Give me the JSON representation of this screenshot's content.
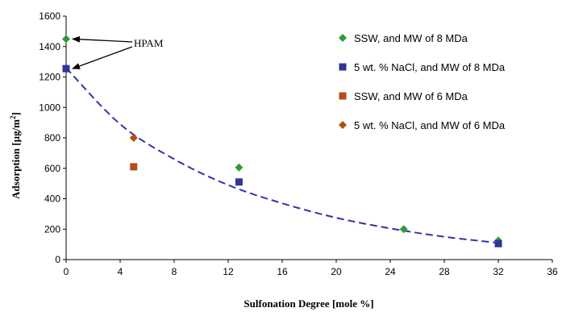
{
  "chart_data": {
    "type": "scatter",
    "xlabel": "Sulfonation Degree [mole %]",
    "ylabel_main": "Adsorption [µg/m",
    "ylabel_sup": "2",
    "ylabel_tail": "]",
    "xlim": [
      0,
      36
    ],
    "ylim": [
      0,
      1600
    ],
    "xticks": [
      0,
      4,
      8,
      12,
      16,
      20,
      24,
      28,
      32,
      36
    ],
    "yticks": [
      0,
      200,
      400,
      600,
      800,
      1000,
      1200,
      1400,
      1600
    ],
    "grid": false,
    "legend_position": "top-right",
    "series": [
      {
        "name": "SSW, and MW of 8 MDa",
        "marker": "diamond",
        "color": "#339933",
        "points": [
          [
            0,
            1450
          ],
          [
            12.8,
            605
          ],
          [
            25,
            200
          ],
          [
            32,
            125
          ]
        ]
      },
      {
        "name": "5 wt. % NaCl, and MW of 8 MDa",
        "marker": "square",
        "color": "#333399",
        "points": [
          [
            0,
            1255
          ],
          [
            12.8,
            510
          ],
          [
            32,
            105
          ]
        ]
      },
      {
        "name": "SSW, and MW of 6 MDa",
        "marker": "square",
        "color": "#b34d1a",
        "points": [
          [
            5,
            610
          ]
        ]
      },
      {
        "name": "5 wt. % NaCl, and MW of 6 MDa",
        "marker": "diamond",
        "color": "#b34d1a",
        "points": [
          [
            5,
            800
          ]
        ]
      }
    ],
    "trendline": {
      "style": "dashed",
      "color": "#3333aa",
      "points": [
        [
          0,
          1260
        ],
        [
          4,
          890
        ],
        [
          8,
          660
        ],
        [
          12,
          490
        ],
        [
          16,
          370
        ],
        [
          20,
          275
        ],
        [
          24,
          205
        ],
        [
          28,
          150
        ],
        [
          32,
          110
        ]
      ]
    },
    "annotations": [
      {
        "text": "HPAM",
        "targets": [
          [
            0,
            1450
          ],
          [
            0,
            1255
          ]
        ]
      }
    ]
  }
}
